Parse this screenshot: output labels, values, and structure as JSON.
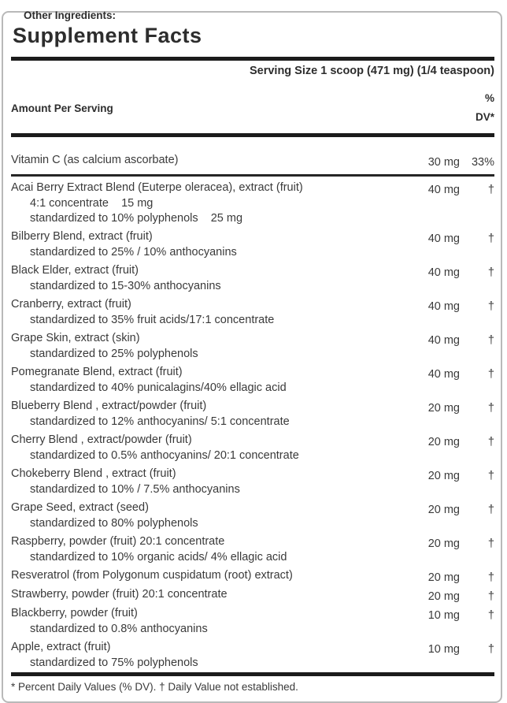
{
  "title": "Supplement Facts",
  "serving_size": "Serving Size 1 scoop (471 mg) (1/4 teaspoon)",
  "columns": {
    "amount_header": "Amount Per Serving",
    "dv_header_line1": "%",
    "dv_header_line2": "DV*"
  },
  "rows": [
    {
      "name": "Vitamin C (as calcium ascorbate)",
      "amount": "30 mg",
      "dv": "33%",
      "subs": [],
      "divider_after": true
    },
    {
      "name": "Acai Berry Extract Blend (Euterpe oleracea), extract (fruit)",
      "amount": "40 mg",
      "dv": "†",
      "subs": [
        "4:1 concentrate    15 mg",
        "standardized to 10% polyphenols    25 mg"
      ]
    },
    {
      "name": "Bilberry Blend, extract (fruit)",
      "amount": "40 mg",
      "dv": "†",
      "subs": [
        "standardized to 25% / 10% anthocyanins"
      ]
    },
    {
      "name": "Black Elder, extract (fruit)",
      "amount": "40 mg",
      "dv": "†",
      "subs": [
        "standardized to 15-30% anthocyanins"
      ]
    },
    {
      "name": "Cranberry, extract (fruit)",
      "amount": "40 mg",
      "dv": "†",
      "subs": [
        "standardized to 35% fruit acids/17:1 concentrate"
      ]
    },
    {
      "name": "Grape Skin, extract (skin)",
      "amount": "40 mg",
      "dv": "†",
      "subs": [
        "standardized to 25% polyphenols"
      ]
    },
    {
      "name": "Pomegranate Blend, extract (fruit)",
      "amount": "40 mg",
      "dv": "†",
      "subs": [
        "standardized to 40% punicalagins/40% ellagic acid"
      ]
    },
    {
      "name": "Blueberry Blend , extract/powder (fruit)",
      "amount": "20 mg",
      "dv": "†",
      "subs": [
        "standardized to 12% anthocyanins/ 5:1 concentrate"
      ]
    },
    {
      "name": "Cherry Blend , extract/powder (fruit)",
      "amount": "20 mg",
      "dv": "†",
      "subs": [
        "standardized to 0.5% anthocyanins/ 20:1 concentrate"
      ]
    },
    {
      "name": "Chokeberry Blend , extract (fruit)",
      "amount": "20 mg",
      "dv": "†",
      "subs": [
        "standardized to 10% / 7.5% anthocyanins"
      ]
    },
    {
      "name": "Grape Seed, extract (seed)",
      "amount": "20 mg",
      "dv": "†",
      "subs": [
        "standardized to 80% polyphenols"
      ]
    },
    {
      "name": "Raspberry, powder (fruit) 20:1 concentrate",
      "amount": "20 mg",
      "dv": "†",
      "subs": [
        "standardized to 10% organic acids/ 4% ellagic acid"
      ]
    },
    {
      "name": "Resveratrol (from Polygonum cuspidatum (root) extract)",
      "amount": "20 mg",
      "dv": "†",
      "subs": []
    },
    {
      "name": "Strawberry, powder (fruit) 20:1 concentrate",
      "amount": "20 mg",
      "dv": "†",
      "subs": []
    },
    {
      "name": "Blackberry, powder (fruit)",
      "amount": "10 mg",
      "dv": "†",
      "subs": [
        "standardized to 0.8% anthocyanins"
      ]
    },
    {
      "name": "Apple, extract (fruit)",
      "amount": "10 mg",
      "dv": "†",
      "subs": [
        "standardized to 75% polyphenols"
      ]
    }
  ],
  "footnote": "* Percent Daily Values (% DV). † Daily Value not established.",
  "other_ingredients_label": "Other Ingredients:",
  "colors": {
    "text": "#3a3a3a",
    "heading": "#2d2d2d",
    "bar": "#1b1b1b",
    "border": "#b9b9b9",
    "background": "#ffffff"
  }
}
